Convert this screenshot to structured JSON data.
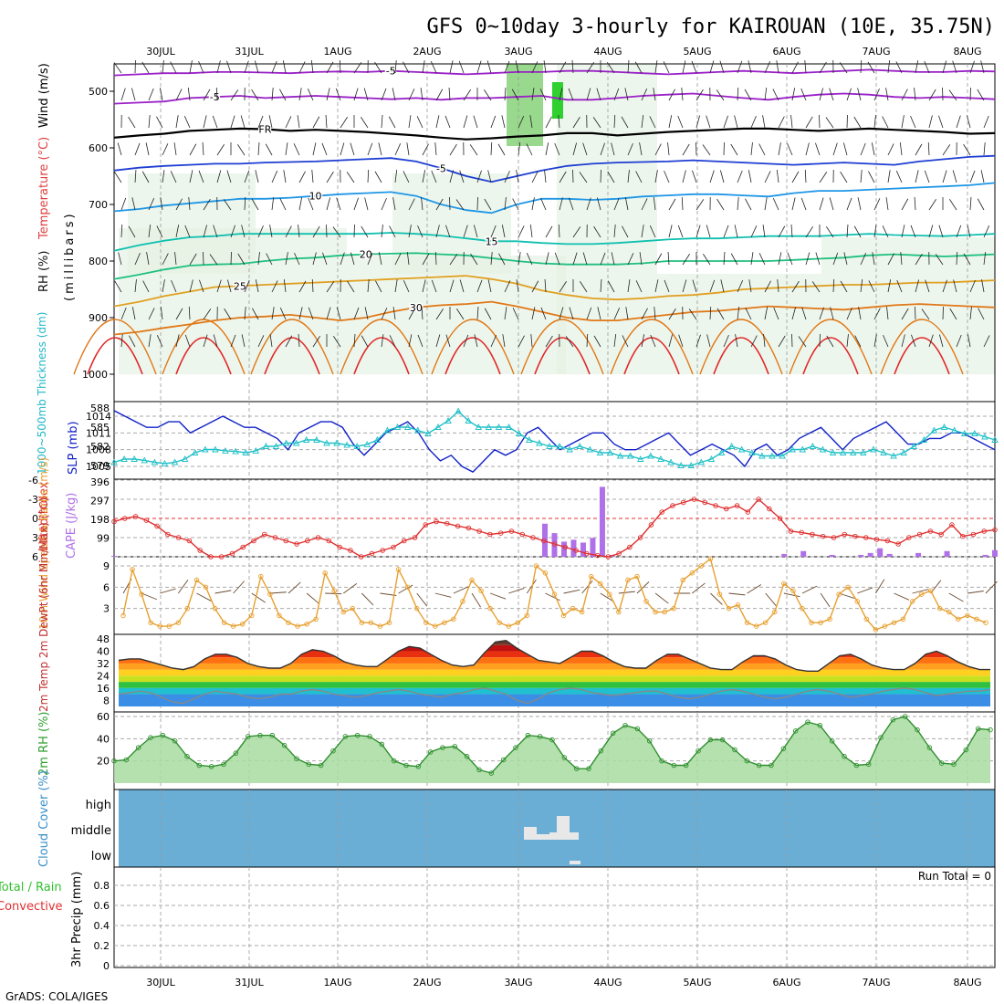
{
  "title": "GFS 0~10day 3-hourly for KAIROUAN (10E, 35.75N)",
  "footer": "GrADS: COLA/IGES",
  "colors": {
    "purple": "#9a20c8",
    "blue": "#1e3ed2",
    "lightblue": "#1e96e6",
    "teal": "#10c0b0",
    "green": "#20c080",
    "orange": "#e0a020",
    "darkorange": "#e07818",
    "red": "#e02828",
    "slp": "#1020c8",
    "thickness": "#20c0c8",
    "cape": "#b070e8",
    "li": "#e03030",
    "wind": "#e8a030",
    "rh": "#40b840",
    "cloud": "#6aaed6"
  },
  "chart_data": [
    {
      "type": "line",
      "name": "upper-air cross section",
      "x_dates": [
        "30JUL",
        "31JUL",
        "1AUG",
        "2AUG",
        "3AUG",
        "4AUG",
        "5AUG",
        "6AUG",
        "7AUG",
        "8AUG"
      ],
      "ylabel_parts": [
        "RH (%)",
        "Temperature (°C)",
        "Wind (m/s)",
        "(millibars)"
      ],
      "yticks": [
        "500",
        "600",
        "700",
        "800",
        "900",
        "1000"
      ],
      "contours": [
        {
          "name": "-5",
          "color": "purple",
          "pressure": [
            522,
            520,
            518,
            512,
            510,
            508,
            512,
            510,
            508,
            510,
            512,
            514,
            512,
            515,
            512,
            512,
            510,
            508,
            515,
            515,
            512,
            508,
            506,
            504,
            508,
            512,
            515,
            510,
            506,
            504,
            506,
            510,
            512,
            510,
            512,
            514
          ]
        },
        {
          "name": "-5",
          "color": "purple",
          "pressure": [
            472,
            470,
            468,
            468,
            466,
            466,
            467,
            468,
            466,
            465,
            466,
            464,
            466,
            468,
            470,
            468,
            466,
            466,
            464,
            464,
            466,
            468,
            470,
            468,
            466,
            464,
            466,
            468,
            466,
            464,
            462,
            464,
            466,
            466,
            464,
            465
          ]
        },
        {
          "name": "FR",
          "color": "black",
          "pressure": [
            582,
            578,
            575,
            570,
            568,
            566,
            567,
            570,
            568,
            570,
            572,
            575,
            578,
            582,
            585,
            583,
            580,
            578,
            574,
            574,
            578,
            575,
            572,
            570,
            568,
            566,
            566,
            568,
            570,
            568,
            566,
            568,
            570,
            572,
            575,
            574
          ]
        },
        {
          "name": "-5",
          "color": "blue",
          "pressure": [
            640,
            635,
            632,
            630,
            628,
            628,
            626,
            625,
            624,
            622,
            620,
            618,
            624,
            636,
            650,
            660,
            650,
            640,
            632,
            628,
            626,
            625,
            624,
            622,
            624,
            626,
            628,
            630,
            628,
            626,
            628,
            630,
            624,
            620,
            616,
            614
          ]
        },
        {
          "name": "10",
          "color": "lightblue",
          "pressure": [
            712,
            708,
            702,
            698,
            694,
            690,
            690,
            688,
            685,
            682,
            680,
            678,
            685,
            700,
            710,
            715,
            700,
            690,
            690,
            692,
            690,
            686,
            684,
            682,
            682,
            684,
            686,
            680,
            676,
            676,
            674,
            672,
            670,
            668,
            666,
            662
          ]
        },
        {
          "name": "15",
          "color": "teal",
          "pressure": [
            782,
            772,
            764,
            758,
            756,
            752,
            752,
            752,
            752,
            752,
            752,
            750,
            752,
            755,
            760,
            765,
            765,
            768,
            770,
            770,
            768,
            765,
            762,
            760,
            760,
            758,
            756,
            756,
            756,
            754,
            752,
            754,
            755,
            756,
            754,
            752
          ]
        },
        {
          "name": "20",
          "color": "green",
          "pressure": [
            832,
            824,
            815,
            808,
            806,
            805,
            800,
            796,
            794,
            790,
            788,
            787,
            786,
            788,
            790,
            795,
            800,
            804,
            806,
            806,
            806,
            804,
            800,
            800,
            800,
            800,
            800,
            798,
            796,
            794,
            790,
            788,
            790,
            792,
            790,
            788
          ]
        },
        {
          "name": "25",
          "color": "orange",
          "pressure": [
            880,
            872,
            862,
            854,
            846,
            844,
            842,
            840,
            838,
            836,
            834,
            832,
            830,
            828,
            826,
            832,
            840,
            852,
            860,
            866,
            868,
            866,
            862,
            860,
            856,
            850,
            848,
            846,
            844,
            842,
            842,
            840,
            838,
            838,
            836,
            834
          ]
        },
        {
          "name": "30",
          "color": "darkorange",
          "pressure": [
            930,
            925,
            918,
            912,
            905,
            900,
            898,
            895,
            900,
            905,
            900,
            890,
            882,
            878,
            876,
            872,
            880,
            890,
            900,
            905,
            905,
            900,
            895,
            890,
            888,
            884,
            880,
            882,
            884,
            886,
            882,
            878,
            876,
            878,
            880,
            882
          ]
        }
      ]
    },
    {
      "type": "line",
      "name": "thickness and slp",
      "ylabel_left": "1000~500mb Thickness (dm)",
      "ylabel_right": "SLP (mb)",
      "yticks_left": [
        "588",
        "585",
        "582",
        "579"
      ],
      "yticks_right": [
        "1014",
        "1011",
        "1008",
        "1005"
      ],
      "slp": [
        1015,
        1014,
        1013,
        1012,
        1012,
        1013,
        1013,
        1011,
        1012,
        1013,
        1014,
        1013,
        1012,
        1012,
        1011,
        1010,
        1008,
        1011,
        1012,
        1013,
        1013,
        1012,
        1009,
        1007,
        1009,
        1011,
        1012,
        1013,
        1011,
        1008,
        1006,
        1007,
        1005,
        1004,
        1006,
        1008,
        1007,
        1008,
        1011,
        1012,
        1010,
        1008,
        1009,
        1010,
        1011,
        1011,
        1009,
        1008,
        1008,
        1009,
        1010,
        1011,
        1009,
        1007,
        1008,
        1009,
        1008,
        1007,
        1005,
        1008,
        1009,
        1007,
        1008,
        1010,
        1011,
        1012,
        1010,
        1008,
        1010,
        1011,
        1012,
        1013,
        1011,
        1009,
        1009,
        1010,
        1010,
        1011,
        1011,
        1010,
        1009,
        1008
      ],
      "thickness": [
        579.5,
        580,
        580,
        579.8,
        579.5,
        579.3,
        579.5,
        580,
        581,
        581.5,
        581.5,
        581.3,
        581.2,
        581,
        581.3,
        582,
        582,
        582.5,
        582.5,
        583,
        583,
        582.5,
        582.5,
        582.2,
        582,
        582.3,
        583,
        584.5,
        585,
        585,
        584.5,
        584,
        585,
        586,
        587.5,
        586,
        585,
        585,
        585,
        585,
        584,
        583,
        582.5,
        582,
        582,
        581.5,
        582,
        581.5,
        581,
        581,
        580.5,
        580.5,
        580,
        580.5,
        580,
        579.5,
        579,
        579,
        579.5,
        580,
        581,
        582,
        581.5,
        581,
        580.5,
        580.5,
        580.5,
        581.5,
        581.5,
        582,
        581.5,
        581,
        581,
        581,
        581,
        581.5,
        581,
        580.5,
        581,
        582,
        583,
        584.5,
        585,
        584.5,
        584,
        584,
        583.5,
        583
      ]
    },
    {
      "type": "bar",
      "name": "lifted index and cape",
      "ylabel_left": "Lifted Index",
      "ylabel_right": "CAPE (J/kg)",
      "yticks_left": [
        "-6",
        "-3",
        "0",
        "3",
        "6"
      ],
      "yticks_right": [
        "396",
        "297",
        "198",
        "99"
      ],
      "lifted_index": [
        0.5,
        0,
        -0.3,
        0.3,
        1.2,
        2.5,
        3,
        3.5,
        5,
        6,
        6,
        5.5,
        4.5,
        3.5,
        2.5,
        3,
        3.5,
        4,
        3.5,
        3,
        3.5,
        4.5,
        5,
        6,
        5.5,
        5,
        4.5,
        3.5,
        3,
        1,
        0.5,
        0.8,
        1.2,
        1.5,
        2,
        2.5,
        2.3,
        2,
        2.5,
        3,
        3.5,
        4,
        4.5,
        5,
        5.5,
        5.8,
        6,
        5.5,
        4.5,
        3,
        1,
        -1,
        -2,
        -2.5,
        -3,
        -2.5,
        -2,
        -1.5,
        -2,
        -1,
        -3,
        -1.5,
        0,
        2,
        2.2,
        2.5,
        2.8,
        3,
        2.5,
        2.8,
        3,
        3.3,
        3.5,
        4,
        3,
        2.5,
        2,
        2.5,
        1,
        2.8,
        2.5,
        2,
        1.8
      ],
      "cape": [
        5,
        0,
        0,
        0,
        0,
        0,
        0,
        0,
        0,
        0,
        0,
        0,
        0,
        0,
        0,
        0,
        0,
        0,
        0,
        0,
        0,
        0,
        0,
        0,
        0,
        0,
        0,
        0,
        0,
        0,
        0,
        0,
        0,
        0,
        0,
        0,
        0,
        0,
        0,
        0,
        0,
        0,
        0,
        0,
        0,
        175,
        125,
        80,
        90,
        75,
        100,
        370,
        10,
        0,
        0,
        0,
        0,
        0,
        0,
        0,
        0,
        0,
        0,
        0,
        0,
        0,
        0,
        0,
        0,
        0,
        15,
        0,
        30,
        0,
        0,
        10,
        0,
        0,
        10,
        20,
        45,
        15,
        0,
        0,
        20,
        0,
        0,
        30,
        0,
        0,
        0,
        10,
        35
      ]
    },
    {
      "type": "line",
      "name": "10m wind",
      "ylabel": "10m Wind Speed & Barbs (m/s)",
      "yticks": [
        "9",
        "6",
        "3"
      ],
      "speed": [
        2,
        8.5,
        5,
        1,
        0.5,
        0.5,
        1,
        3,
        7,
        6,
        3,
        1,
        0.5,
        0.8,
        2,
        7.5,
        5,
        2,
        1,
        0.5,
        0.8,
        1.5,
        8,
        5.5,
        2.5,
        3,
        1,
        1,
        0.5,
        1,
        8.5,
        6,
        3,
        1,
        0.5,
        1,
        1.5,
        4,
        7,
        5.5,
        3,
        1,
        0.5,
        1,
        2,
        9,
        8,
        5,
        2,
        3,
        2.5,
        7.5,
        6.5,
        5,
        2.5,
        7,
        7.5,
        4,
        2.5,
        2.5,
        3,
        7,
        8,
        9,
        10,
        5,
        3,
        3.5,
        1,
        0.5,
        1,
        2.5,
        6.5,
        5.5,
        3,
        1,
        1,
        1.5,
        5,
        6,
        4,
        1.5,
        0,
        0.5,
        1,
        1.5,
        4,
        5,
        5.5,
        3,
        2.5,
        1.5,
        2,
        1.5,
        1
      ]
    },
    {
      "type": "area",
      "name": "2m temperature and dewpoint",
      "ylabel": "2m Temp 2m DewPt (6hr Min/Max) (°C)",
      "yticks": [
        "48",
        "40",
        "32",
        "24",
        "16",
        "8"
      ],
      "temp": [
        34,
        35,
        35,
        33,
        31,
        29,
        28,
        30,
        35,
        38,
        38,
        36,
        32,
        30,
        29,
        29,
        32,
        38,
        41,
        40,
        37,
        33,
        31,
        30,
        30,
        35,
        40,
        43,
        42,
        38,
        34,
        31,
        30,
        31,
        39,
        46,
        47,
        42,
        38,
        34,
        33,
        32,
        36,
        40,
        40,
        37,
        33,
        30,
        29,
        29,
        34,
        38,
        38,
        35,
        32,
        29,
        28,
        28,
        33,
        37,
        37,
        35,
        31,
        28,
        27,
        27,
        32,
        37,
        38,
        35,
        31,
        29,
        28,
        28,
        32,
        38,
        40,
        37,
        33,
        30,
        28,
        28
      ],
      "dewpt": [
        12,
        13,
        14,
        13,
        10,
        7,
        6,
        9,
        12,
        14,
        13,
        12,
        10,
        9,
        10,
        12,
        12,
        14,
        15,
        14,
        12,
        11,
        10,
        11,
        13,
        14,
        15,
        14,
        12,
        11,
        10,
        12,
        13,
        15,
        16,
        14,
        12,
        8,
        6,
        9,
        13,
        15,
        16,
        15,
        13,
        12,
        11,
        12,
        13,
        14,
        14,
        12,
        10,
        9,
        10,
        12,
        14,
        15,
        14,
        12,
        10,
        9,
        10,
        12,
        14,
        15,
        14,
        12,
        10,
        11,
        12,
        14,
        15,
        16,
        15,
        13,
        11,
        12,
        13,
        14,
        14,
        15
      ]
    },
    {
      "type": "area",
      "name": "2m relative humidity",
      "ylabel": "2m RH (%)",
      "yticks": [
        "60",
        "40",
        "20"
      ],
      "rh": [
        20,
        21,
        32,
        41,
        43,
        38,
        24,
        16,
        15,
        17,
        27,
        42,
        43,
        43,
        34,
        22,
        17,
        16,
        29,
        42,
        43,
        42,
        35,
        20,
        16,
        15,
        28,
        32,
        33,
        24,
        12,
        9,
        21,
        32,
        43,
        42,
        39,
        23,
        13,
        13,
        29,
        45,
        52,
        49,
        38,
        20,
        16,
        16,
        29,
        39,
        39,
        30,
        20,
        16,
        16,
        31,
        47,
        55,
        52,
        38,
        24,
        16,
        17,
        41,
        57,
        60,
        48,
        32,
        18,
        17,
        30,
        49,
        48
      ]
    },
    {
      "type": "heatmap",
      "name": "cloud cover",
      "ylabel": "Cloud Cover (%)",
      "levels": [
        "high",
        "middle",
        "low"
      ]
    },
    {
      "type": "bar",
      "name": "precipitation",
      "ylabel": "3hr Precip (mm)",
      "ylabel_left_parts": [
        "Total / Rain",
        "Convective"
      ],
      "yticks": [
        "0.8",
        "0.6",
        "0.4",
        "0.2",
        "0"
      ],
      "run_total": "Run Total = 0"
    }
  ]
}
